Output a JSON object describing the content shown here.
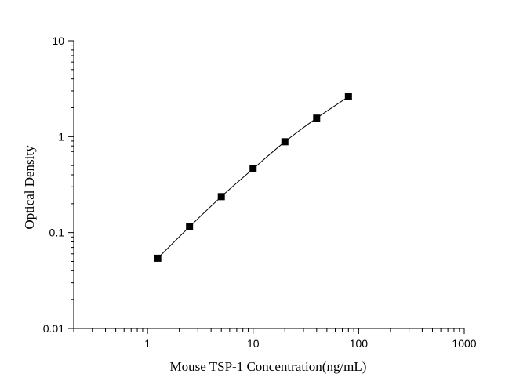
{
  "chart_data": {
    "type": "scatter",
    "title": "",
    "xlabel": "Mouse TSP-1 Concentration(ng/mL)",
    "ylabel": "Optical Density",
    "x_scale": "log",
    "y_scale": "log",
    "xlim": [
      0.2,
      1000
    ],
    "ylim": [
      0.01,
      10
    ],
    "x_ticks": [
      1,
      10,
      100,
      1000
    ],
    "x_tick_labels": [
      "1",
      "10",
      "100",
      "1000"
    ],
    "y_ticks": [
      0.01,
      0.1,
      1,
      10
    ],
    "y_tick_labels": [
      "0.01",
      "0.1",
      "1",
      "10"
    ],
    "grid": false,
    "legend": "none",
    "series": [
      {
        "x": [
          1.25,
          2.5,
          5,
          10,
          20,
          40,
          80
        ],
        "y": [
          0.054,
          0.115,
          0.237,
          0.462,
          0.885,
          1.56,
          2.61
        ],
        "marker": "square",
        "fit_line": true,
        "color": "#000000"
      }
    ]
  }
}
